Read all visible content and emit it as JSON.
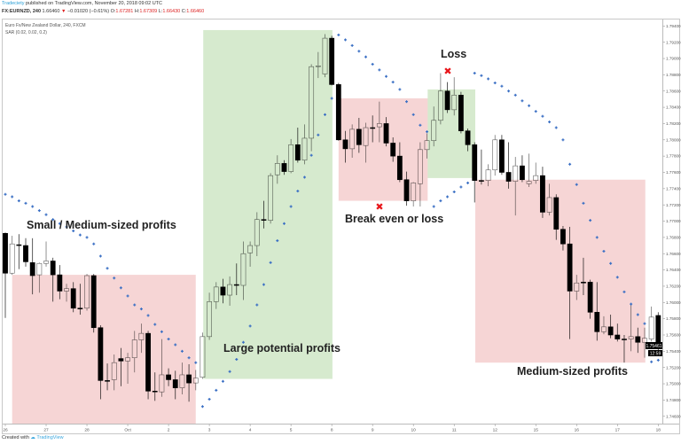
{
  "header": {
    "author": "Tradeciety",
    "published": "published on TradingView.com, November 20, 2018 09:02 UTC",
    "symbol": "FX:EURNZD, 240",
    "last": "1.66460",
    "change": "−0.01020 (−0.61%)",
    "o_label": "O:",
    "o": "1.67281",
    "h_label": "H:",
    "h": "1.67309",
    "l_label": "L:",
    "l": "1.66430",
    "c_label": "C:",
    "c": "1.66460"
  },
  "legend": {
    "instrument": "Euro Fx/New Zealand Dollar, 240, FXCM",
    "indicator": "SAR (0.02, 0.02, 0.2)"
  },
  "annotations": {
    "small_medium": "Small / Medium-sized profits",
    "large": "Large potential profits",
    "loss": "Loss",
    "break_even": "Break even or loss",
    "medium": "Medium-sized profits"
  },
  "footer": {
    "created": "Created with",
    "brand": "TradingView"
  },
  "chart_data": {
    "type": "candlestick",
    "title": "Euro Fx/New Zealand Dollar, 240, FXCM",
    "ylim": [
      1.7451,
      1.7948
    ],
    "y_ticks": [
      "1.79400",
      "1.79200",
      "1.79000",
      "1.78800",
      "1.78600",
      "1.78400",
      "1.78200",
      "1.78000",
      "1.77800",
      "1.77600",
      "1.77400",
      "1.77200",
      "1.77000",
      "1.76800",
      "1.76600",
      "1.76400",
      "1.76200",
      "1.76000",
      "1.75800",
      "1.75600",
      "1.75400",
      "1.75200",
      "1.75000",
      "1.74800",
      "1.74600"
    ],
    "x_ticks": [
      {
        "bar": 0,
        "label": "26"
      },
      {
        "bar": 6,
        "label": "27"
      },
      {
        "bar": 12,
        "label": "28"
      },
      {
        "bar": 18,
        "label": "Oct"
      },
      {
        "bar": 24,
        "label": "2"
      },
      {
        "bar": 30,
        "label": "3"
      },
      {
        "bar": 36,
        "label": "4"
      },
      {
        "bar": 42,
        "label": "5"
      },
      {
        "bar": 48,
        "label": "8"
      },
      {
        "bar": 54,
        "label": "9"
      },
      {
        "bar": 60,
        "label": "10"
      },
      {
        "bar": 66,
        "label": "11"
      },
      {
        "bar": 72,
        "label": "12"
      },
      {
        "bar": 78,
        "label": "15"
      },
      {
        "bar": 84,
        "label": "16"
      },
      {
        "bar": 90,
        "label": "17"
      },
      {
        "bar": 96,
        "label": "18"
      }
    ],
    "last_price_label": "1.75461",
    "countdown_label": "12:59",
    "ohlc": [
      [
        1.7685,
        1.7686,
        1.7581,
        1.7636
      ],
      [
        1.7636,
        1.7682,
        1.7634,
        1.7672
      ],
      [
        1.7671,
        1.7684,
        1.7641,
        1.767
      ],
      [
        1.767,
        1.7679,
        1.7644,
        1.765
      ],
      [
        1.7649,
        1.7679,
        1.761,
        1.7633
      ],
      [
        1.7634,
        1.7649,
        1.7612,
        1.7648
      ],
      [
        1.7648,
        1.7675,
        1.7644,
        1.7651
      ],
      [
        1.7651,
        1.7655,
        1.7601,
        1.7634
      ],
      [
        1.7634,
        1.7646,
        1.7604,
        1.7614
      ],
      [
        1.7614,
        1.7623,
        1.7601,
        1.7617
      ],
      [
        1.7617,
        1.7625,
        1.7588,
        1.7593
      ],
      [
        1.7593,
        1.7623,
        1.7585,
        1.7592
      ],
      [
        1.7593,
        1.7635,
        1.759,
        1.7633
      ],
      [
        1.7633,
        1.7635,
        1.7563,
        1.7569
      ],
      [
        1.7569,
        1.7572,
        1.7481,
        1.7504
      ],
      [
        1.7504,
        1.7525,
        1.7492,
        1.7503
      ],
      [
        1.7505,
        1.7536,
        1.7492,
        1.7526
      ],
      [
        1.7531,
        1.7544,
        1.7497,
        1.7528
      ],
      [
        1.7528,
        1.7538,
        1.75,
        1.7532
      ],
      [
        1.7532,
        1.7565,
        1.7514,
        1.7554
      ],
      [
        1.7554,
        1.7574,
        1.7538,
        1.7562
      ],
      [
        1.7562,
        1.7565,
        1.7481,
        1.7491
      ],
      [
        1.7491,
        1.7514,
        1.7479,
        1.749
      ],
      [
        1.749,
        1.7555,
        1.7484,
        1.7511
      ],
      [
        1.7511,
        1.7519,
        1.7497,
        1.7505
      ],
      [
        1.7505,
        1.7516,
        1.7481,
        1.7495
      ],
      [
        1.7495,
        1.7526,
        1.7487,
        1.7511
      ],
      [
        1.7511,
        1.7524,
        1.7478,
        1.7501
      ],
      [
        1.7501,
        1.7517,
        1.7492,
        1.7507
      ],
      [
        1.7508,
        1.7563,
        1.7506,
        1.7558
      ],
      [
        1.7558,
        1.7612,
        1.7554,
        1.7601
      ],
      [
        1.7601,
        1.7625,
        1.7592,
        1.7619
      ],
      [
        1.7619,
        1.7629,
        1.7599,
        1.7609
      ],
      [
        1.7609,
        1.7632,
        1.7596,
        1.7622
      ],
      [
        1.7622,
        1.7648,
        1.7609,
        1.7621
      ],
      [
        1.7621,
        1.7675,
        1.7603,
        1.766
      ],
      [
        1.7661,
        1.7675,
        1.7644,
        1.767
      ],
      [
        1.767,
        1.7711,
        1.7657,
        1.7702
      ],
      [
        1.7702,
        1.7725,
        1.7691,
        1.7701
      ],
      [
        1.7701,
        1.7759,
        1.7697,
        1.7756
      ],
      [
        1.7757,
        1.7781,
        1.7746,
        1.7771
      ],
      [
        1.7771,
        1.7775,
        1.7757,
        1.7761
      ],
      [
        1.7761,
        1.7801,
        1.7759,
        1.7794
      ],
      [
        1.7794,
        1.7815,
        1.7772,
        1.7775
      ],
      [
        1.7775,
        1.7819,
        1.777,
        1.7802
      ],
      [
        1.7802,
        1.7893,
        1.7786,
        1.789
      ],
      [
        1.789,
        1.7908,
        1.7876,
        1.7891
      ],
      [
        1.7881,
        1.793,
        1.7877,
        1.7925
      ],
      [
        1.7925,
        1.7928,
        1.7867,
        1.7868
      ],
      [
        1.7868,
        1.787,
        1.7799,
        1.78
      ],
      [
        1.78,
        1.7811,
        1.7772,
        1.7789
      ],
      [
        1.7789,
        1.7819,
        1.7778,
        1.7813
      ],
      [
        1.7813,
        1.7827,
        1.7784,
        1.7794
      ],
      [
        1.7793,
        1.7821,
        1.7772,
        1.7815
      ],
      [
        1.7815,
        1.783,
        1.7797,
        1.7814
      ],
      [
        1.7816,
        1.7847,
        1.7797,
        1.782
      ],
      [
        1.782,
        1.7828,
        1.7792,
        1.7796
      ],
      [
        1.7796,
        1.7803,
        1.7773,
        1.778
      ],
      [
        1.778,
        1.7797,
        1.7748,
        1.7751
      ],
      [
        1.7751,
        1.7761,
        1.7719,
        1.7725
      ],
      [
        1.7725,
        1.7748,
        1.7718,
        1.7747
      ],
      [
        1.7746,
        1.7797,
        1.7718,
        1.7788
      ],
      [
        1.7788,
        1.7808,
        1.7777,
        1.7799
      ],
      [
        1.7799,
        1.7841,
        1.7792,
        1.7824
      ],
      [
        1.7824,
        1.7882,
        1.7819,
        1.786
      ],
      [
        1.786,
        1.7871,
        1.7833,
        1.7837
      ],
      [
        1.7837,
        1.7877,
        1.783,
        1.7855
      ],
      [
        1.7855,
        1.7859,
        1.7808,
        1.7811
      ],
      [
        1.7811,
        1.7814,
        1.7786,
        1.7794
      ],
      [
        1.7794,
        1.7797,
        1.7723,
        1.775
      ],
      [
        1.775,
        1.7788,
        1.7745,
        1.7749
      ],
      [
        1.775,
        1.777,
        1.7743,
        1.7763
      ],
      [
        1.7763,
        1.7806,
        1.7756,
        1.78
      ],
      [
        1.78,
        1.7806,
        1.7757,
        1.776
      ],
      [
        1.776,
        1.7797,
        1.774,
        1.7749
      ],
      [
        1.7749,
        1.7779,
        1.7707,
        1.7768
      ],
      [
        1.7768,
        1.7781,
        1.7748,
        1.7751
      ],
      [
        1.7746,
        1.7783,
        1.7742,
        1.7749
      ],
      [
        1.775,
        1.7772,
        1.7746,
        1.7756
      ],
      [
        1.7756,
        1.7767,
        1.7704,
        1.7711
      ],
      [
        1.7711,
        1.7746,
        1.7707,
        1.7729
      ],
      [
        1.7729,
        1.7733,
        1.7677,
        1.769
      ],
      [
        1.769,
        1.7694,
        1.7664,
        1.7672
      ],
      [
        1.7672,
        1.7693,
        1.7555,
        1.7614
      ],
      [
        1.7614,
        1.7634,
        1.7603,
        1.7624
      ],
      [
        1.7625,
        1.7655,
        1.7609,
        1.7624
      ],
      [
        1.7625,
        1.7628,
        1.758,
        1.7588
      ],
      [
        1.7588,
        1.7625,
        1.7553,
        1.7564
      ],
      [
        1.7564,
        1.7583,
        1.7561,
        1.757
      ],
      [
        1.757,
        1.7585,
        1.7556,
        1.756
      ],
      [
        1.756,
        1.7574,
        1.7552,
        1.7555
      ],
      [
        1.7555,
        1.756,
        1.7526,
        1.7554
      ],
      [
        1.7555,
        1.7599,
        1.754,
        1.7558
      ],
      [
        1.7558,
        1.7569,
        1.7538,
        1.7551
      ],
      [
        1.7551,
        1.7569,
        1.7532,
        1.7556
      ],
      [
        1.7555,
        1.7595,
        1.7552,
        1.7582
      ],
      [
        1.7584,
        1.7588,
        1.754,
        1.7546
      ]
    ],
    "sar": [
      1.7733,
      1.773,
      1.7725,
      1.7722,
      1.7718,
      1.7713,
      1.7708,
      1.7702,
      1.7697,
      1.7693,
      1.7688,
      1.7683,
      1.768,
      1.7672,
      1.7657,
      1.7642,
      1.763,
      1.7618,
      1.7608,
      1.7597,
      1.7592,
      1.7584,
      1.7573,
      1.7564,
      1.7555,
      1.7548,
      1.754,
      1.7532,
      1.7526,
      1.7472,
      1.7481,
      1.7492,
      1.7503,
      1.7515,
      1.753,
      1.7551,
      1.7571,
      1.7597,
      1.7622,
      1.7649,
      1.7676,
      1.7697,
      1.7718,
      1.7737,
      1.7754,
      1.7781,
      1.7806,
      1.7831,
      1.7851,
      1.7929,
      1.7923,
      1.7916,
      1.7909,
      1.7902,
      1.7893,
      1.7886,
      1.7878,
      1.7871,
      1.7862,
      1.7847,
      1.7831,
      1.7818,
      1.781,
      1.7718,
      1.7725,
      1.773,
      1.7736,
      1.7742,
      1.7747,
      1.7882,
      1.7879,
      1.7875,
      1.787,
      1.7866,
      1.786,
      1.7855,
      1.7848,
      1.7842,
      1.7835,
      1.7829,
      1.7822,
      1.7815,
      1.78,
      1.777,
      1.7745,
      1.7722,
      1.7701,
      1.768,
      1.7663,
      1.7648,
      1.7631,
      1.7613,
      1.7598,
      1.7585,
      1.7574,
      1.7527,
      1.7529
    ],
    "zones": [
      {
        "name": "small-medium-profits-zone",
        "kind": "profit",
        "color": "#efb2b2",
        "from_bar": 1.0,
        "to_bar": 28.0,
        "top": 1.7634,
        "bottom": 1.7451
      },
      {
        "name": "large-potential-profits-zone",
        "kind": "profit",
        "color": "#b5d9a5",
        "from_bar": 29.1,
        "to_bar": 48.1,
        "top": 1.7935,
        "bottom": 1.7506
      },
      {
        "name": "break-even-zone",
        "kind": "short",
        "color": "#efb2b2",
        "from_bar": 49.0,
        "to_bar": 62.1,
        "top": 1.7851,
        "bottom": 1.7725
      },
      {
        "name": "loss-zone",
        "kind": "long",
        "color": "#b5d9a5",
        "from_bar": 62.1,
        "to_bar": 69.1,
        "top": 1.7862,
        "bottom": 1.7753
      },
      {
        "name": "medium-profits-zone",
        "kind": "profit",
        "color": "#efb2b2",
        "from_bar": 69.1,
        "to_bar": 94.1,
        "top": 1.7751,
        "bottom": 1.7526
      }
    ],
    "colors": {
      "up": "#ffffff",
      "down": "#000000",
      "wick": "#555555",
      "sar": "#3a6fc4",
      "marker": "#e8161b"
    }
  }
}
